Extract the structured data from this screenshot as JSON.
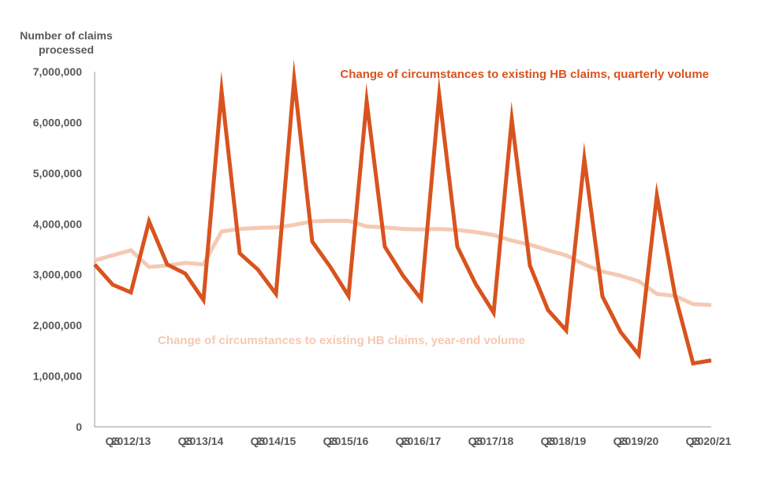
{
  "chart_data": {
    "type": "line",
    "title": "",
    "ylabel": [
      "Number of claims",
      "processed"
    ],
    "xlabel": "",
    "ylim": [
      0,
      7000000
    ],
    "yticks": [
      0,
      1000000,
      2000000,
      3000000,
      4000000,
      5000000,
      6000000,
      7000000
    ],
    "ytick_labels": [
      "0",
      "1,000,000",
      "2,000,000",
      "3,000,000",
      "4,000,000",
      "5,000,000",
      "6,000,000",
      "7,000,000"
    ],
    "x_tick_labels": [
      "Q3",
      "2012/13",
      "Q3",
      "2013/14",
      "Q3",
      "2014/15",
      "Q3",
      "2015/16",
      "Q3",
      "2016/17",
      "Q3",
      "2017/18",
      "Q3",
      "2018/19",
      "Q3",
      "2019/20",
      "Q3",
      "2020/21"
    ],
    "x_tick_positions": [
      1,
      2,
      5,
      6,
      9,
      10,
      13,
      14,
      17,
      18,
      21,
      22,
      25,
      26,
      29,
      30,
      33,
      34
    ],
    "x_count": 35,
    "grid": false,
    "series": [
      {
        "name": "Change of circumstances to existing HB claims, quarterly volume",
        "color": "#D9531E",
        "label_position": "top-right",
        "values": [
          3200000,
          2800000,
          2650000,
          4050000,
          3200000,
          3020000,
          2500000,
          6620000,
          3420000,
          3100000,
          2620000,
          6850000,
          3650000,
          3150000,
          2580000,
          6420000,
          3550000,
          2980000,
          2520000,
          6540000,
          3550000,
          2820000,
          2250000,
          6060000,
          3180000,
          2300000,
          1900000,
          5280000,
          2570000,
          1870000,
          1420000,
          4560000,
          2600000,
          1250000,
          1310000
        ]
      },
      {
        "name": "Change of circumstances to existing HB claims, year-end volume",
        "color": "#F5C9B3",
        "label_position": "center",
        "values": [
          3280000,
          3380000,
          3480000,
          3150000,
          3180000,
          3230000,
          3200000,
          3850000,
          3900000,
          3920000,
          3930000,
          3980000,
          4050000,
          4060000,
          4060000,
          3950000,
          3930000,
          3900000,
          3890000,
          3900000,
          3880000,
          3840000,
          3780000,
          3670000,
          3590000,
          3480000,
          3380000,
          3200000,
          3060000,
          2980000,
          2870000,
          2620000,
          2580000,
          2420000,
          2400000
        ]
      }
    ]
  }
}
